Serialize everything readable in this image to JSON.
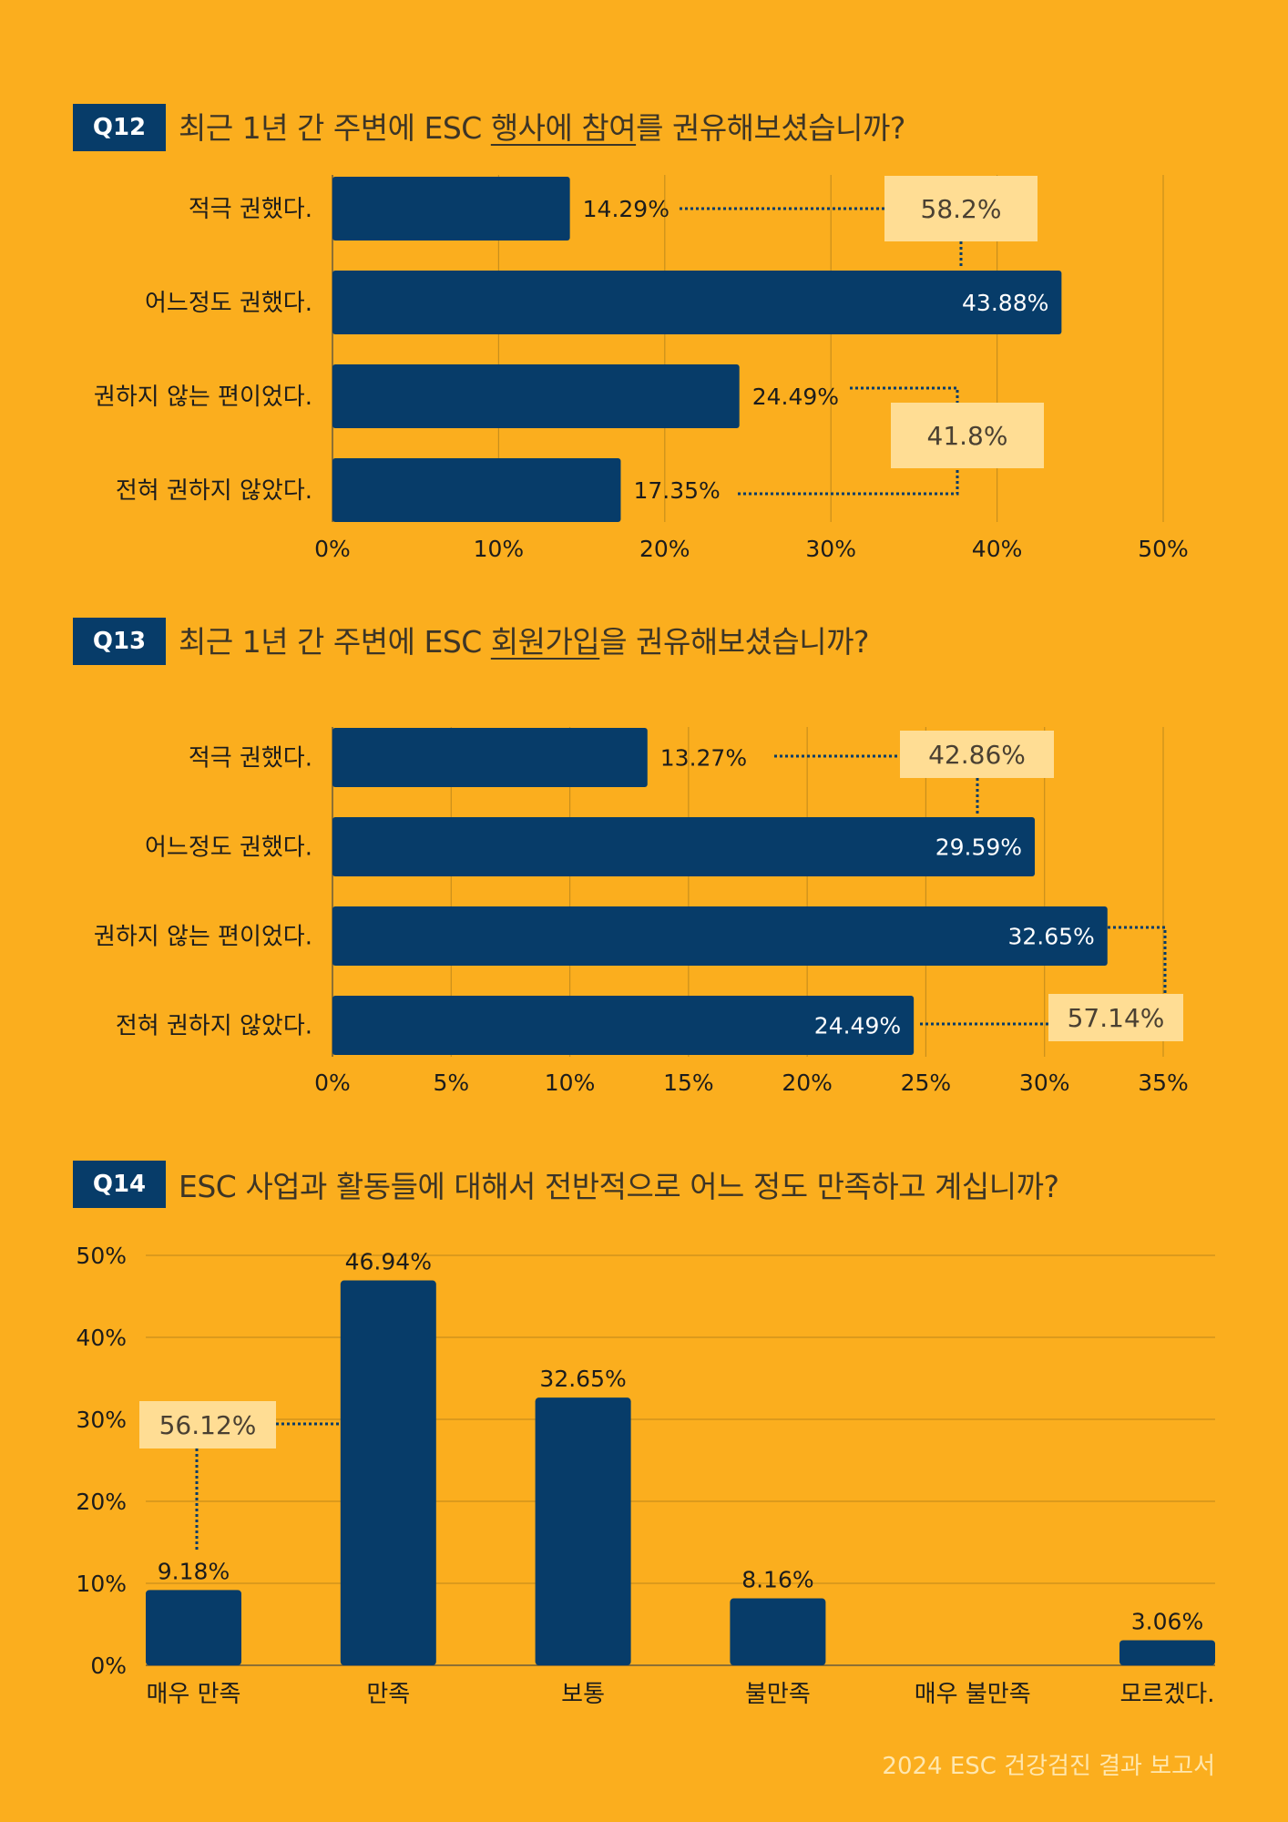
{
  "questions": [
    {
      "badge": "Q12",
      "title_before": "최근 1년 간 주변에 ESC ",
      "title_underlined": "행사에 참여",
      "title_after": "를 권유해보셨습니까?"
    },
    {
      "badge": "Q13",
      "title_before": "최근 1년 간 주변에 ESC ",
      "title_underlined": "회원가입",
      "title_after": "을 권유해보셨습니까?"
    },
    {
      "badge": "Q14",
      "title_before": "ESC 사업과 활동들에 대해서 전반적으로 어느 정도 만족하고 계십니까?",
      "title_underlined": "",
      "title_after": ""
    }
  ],
  "chart_data": [
    {
      "type": "bar",
      "orientation": "horizontal",
      "categories": [
        "적극 권했다.",
        "어느정도 권했다.",
        "권하지 않는 편이었다.",
        "전혀 권하지 않았다."
      ],
      "values": [
        14.29,
        43.88,
        24.49,
        17.35
      ],
      "value_labels": [
        "14.29%",
        "43.88%",
        "24.49%",
        "17.35%"
      ],
      "xlim": [
        0,
        50
      ],
      "ticks": [
        "0%",
        "10%",
        "20%",
        "30%",
        "40%",
        "50%"
      ],
      "grid": true,
      "callouts": [
        {
          "label": "58.2%",
          "groups": [
            0,
            1
          ]
        },
        {
          "label": "41.8%",
          "groups": [
            2,
            3
          ]
        }
      ],
      "bar_color": "#073C69",
      "callout_color": "#FFDD94"
    },
    {
      "type": "bar",
      "orientation": "horizontal",
      "categories": [
        "적극 권했다.",
        "어느정도 권했다.",
        "권하지 않는 편이었다.",
        "전혀 권하지 않았다."
      ],
      "values": [
        13.27,
        29.59,
        32.65,
        24.49
      ],
      "value_labels": [
        "13.27%",
        "29.59%",
        "32.65%",
        "24.49%"
      ],
      "xlim": [
        0,
        35
      ],
      "ticks": [
        "0%",
        "5%",
        "10%",
        "15%",
        "20%",
        "25%",
        "30%",
        "35%"
      ],
      "grid": true,
      "callouts": [
        {
          "label": "42.86%",
          "groups": [
            0,
            1
          ]
        },
        {
          "label": "57.14%",
          "groups": [
            2,
            3
          ]
        }
      ],
      "bar_color": "#073C69",
      "callout_color": "#FFDD94"
    },
    {
      "type": "bar",
      "orientation": "vertical",
      "categories": [
        "매우 만족",
        "만족",
        "보통",
        "불만족",
        "매우 불만족",
        "모르겠다."
      ],
      "values": [
        9.18,
        46.94,
        32.65,
        8.16,
        0,
        3.06
      ],
      "value_labels": [
        "9.18%",
        "46.94%",
        "32.65%",
        "8.16%",
        "",
        "3.06%"
      ],
      "ylim": [
        0,
        50
      ],
      "ticks": [
        "0%",
        "10%",
        "20%",
        "30%",
        "40%",
        "50%"
      ],
      "grid": true,
      "callouts": [
        {
          "label": "56.12%",
          "groups": [
            0,
            1
          ]
        }
      ],
      "bar_color": "#073C69",
      "callout_color": "#FFDD94"
    }
  ],
  "footer": "2024 ESC 건강검진 결과 보고서"
}
